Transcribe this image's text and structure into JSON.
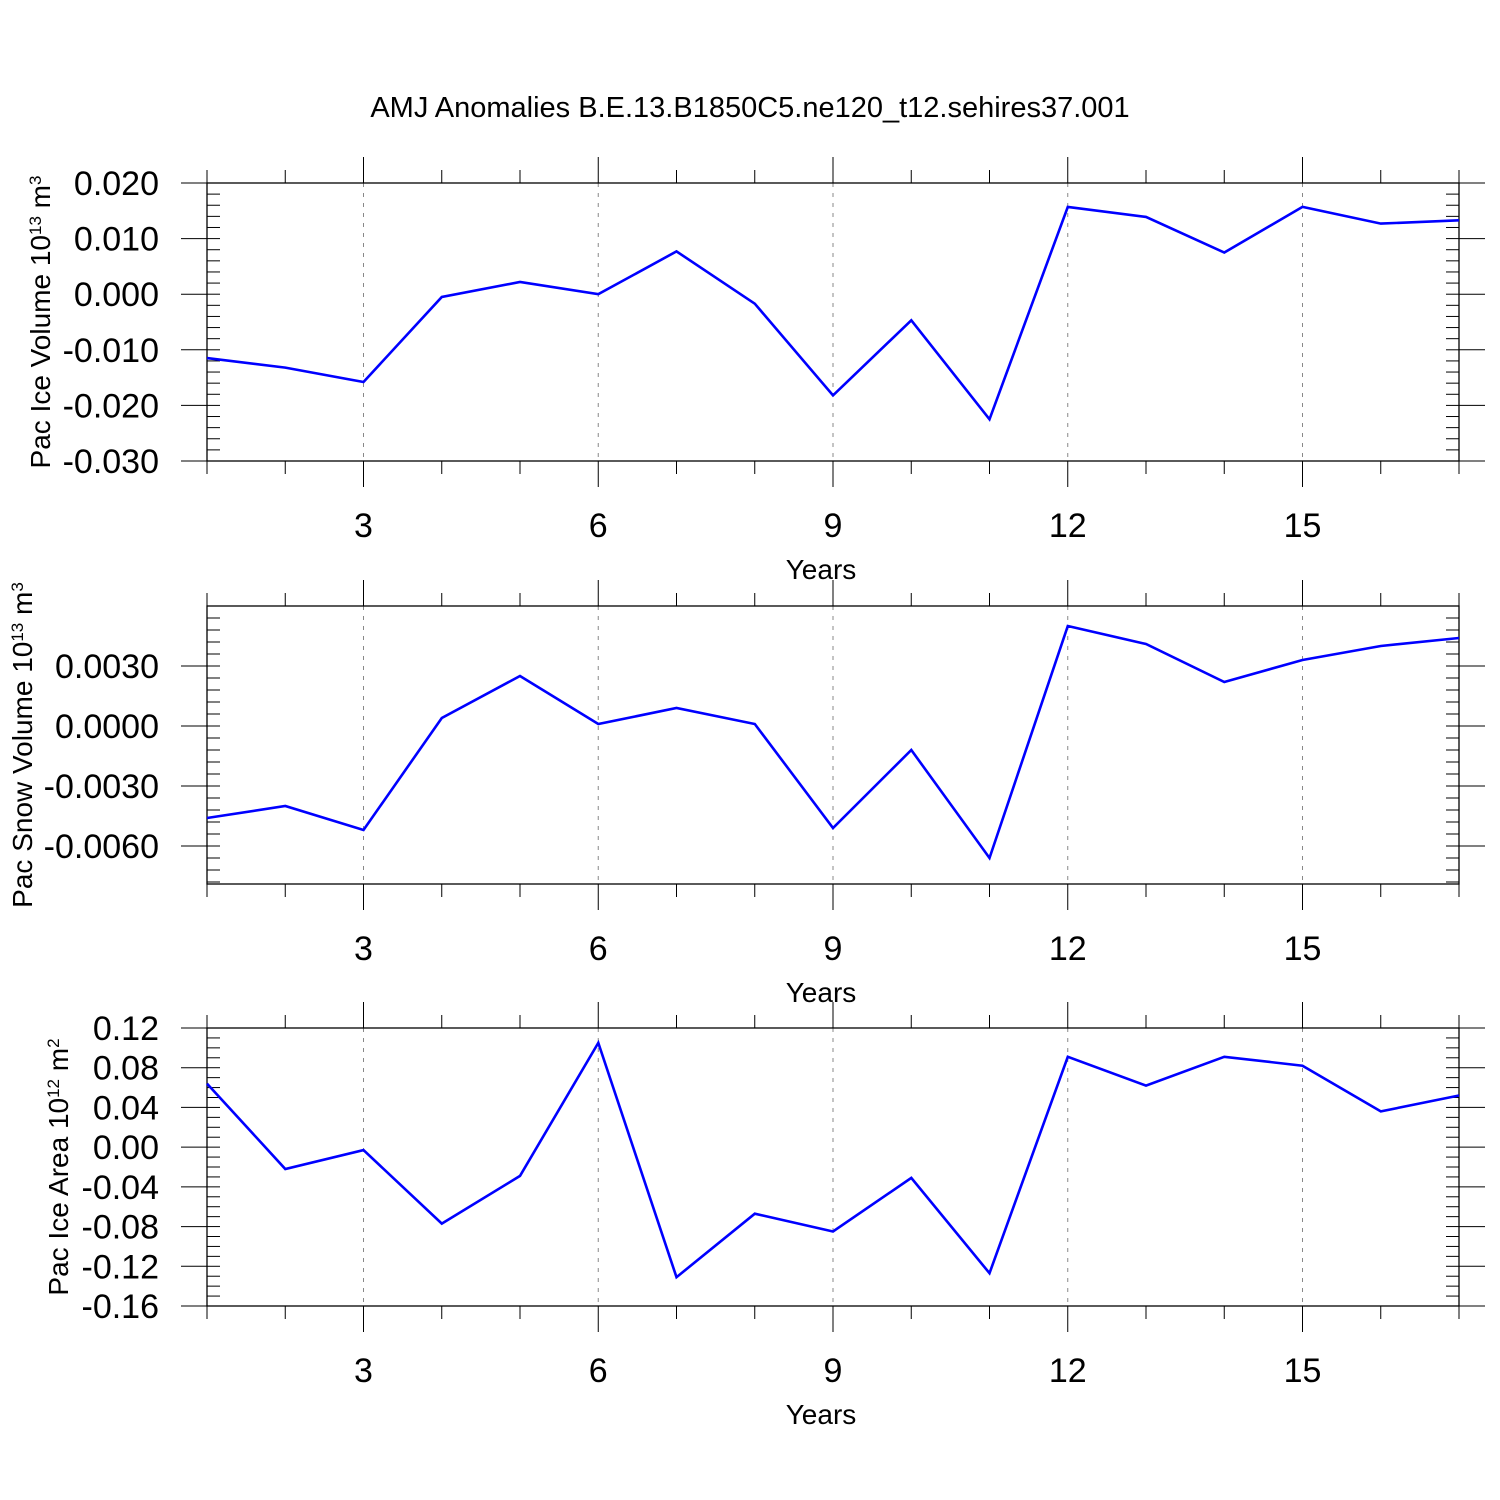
{
  "title": "AMJ Anomalies B.E.13.B1850C5.ne120_t12.sehires37.001",
  "colors": {
    "line": "#0000ff",
    "axis": "#000000",
    "grid": "#888888"
  },
  "chart_data": [
    {
      "type": "line",
      "xlabel": "Years",
      "ylabel": "Pac Ice Volume 10",
      "ylabel_sup": "13",
      "ylabel_unit": "m",
      "ylabel_unit_sup": "3",
      "xlim": [
        1,
        17
      ],
      "ylim": [
        -0.03,
        0.02
      ],
      "xticks": [
        "3",
        "6",
        "9",
        "12",
        "15"
      ],
      "yticks": [
        "0.020",
        "0.010",
        "0.000",
        "-0.010",
        "-0.020",
        "-0.030"
      ],
      "grid": "vertical dashed at major x ticks",
      "series": [
        {
          "x": [
            1,
            2,
            3,
            4,
            5,
            6,
            7,
            8,
            9,
            10,
            11,
            12,
            13,
            14,
            15,
            16,
            17
          ],
          "values": [
            -0.0115,
            -0.0132,
            -0.0158,
            -0.0005,
            0.0022,
            0.0,
            0.0077,
            -0.0017,
            -0.0182,
            -0.0047,
            -0.0225,
            0.0157,
            0.0139,
            0.0075,
            0.0157,
            0.0127,
            0.0133
          ]
        }
      ]
    },
    {
      "type": "line",
      "xlabel": "Years",
      "ylabel": "Pac Snow Volume 10",
      "ylabel_sup": "13",
      "ylabel_unit": "m",
      "ylabel_unit_sup": "3",
      "xlim": [
        1,
        17
      ],
      "ylim": [
        -0.0079,
        0.006
      ],
      "xticks": [
        "3",
        "6",
        "9",
        "12",
        "15"
      ],
      "yticks": [
        "0.0030",
        "0.0000",
        "-0.0030",
        "-0.0060"
      ],
      "grid": "vertical dashed at major x ticks",
      "series": [
        {
          "x": [
            1,
            2,
            3,
            4,
            5,
            6,
            7,
            8,
            9,
            10,
            11,
            12,
            13,
            14,
            15,
            16,
            17
          ],
          "values": [
            -0.0046,
            -0.004,
            -0.0052,
            0.0004,
            0.0025,
            0.0001,
            0.0009,
            0.0001,
            -0.0051,
            -0.0012,
            -0.0066,
            0.005,
            0.0041,
            0.0022,
            0.0033,
            0.004,
            0.0044
          ]
        }
      ]
    },
    {
      "type": "line",
      "xlabel": "Years",
      "ylabel": "Pac Ice Area 10",
      "ylabel_sup": "12",
      "ylabel_unit": "m",
      "ylabel_unit_sup": "2",
      "xlim": [
        1,
        17
      ],
      "ylim": [
        -0.16,
        0.12
      ],
      "xticks": [
        "3",
        "6",
        "9",
        "12",
        "15"
      ],
      "yticks": [
        "0.12",
        "0.08",
        "0.04",
        "0.00",
        "-0.04",
        "-0.08",
        "-0.12",
        "-0.16"
      ],
      "grid": "vertical dashed at major x ticks",
      "series": [
        {
          "x": [
            1,
            2,
            3,
            4,
            5,
            6,
            7,
            8,
            9,
            10,
            11,
            12,
            13,
            14,
            15,
            16,
            17
          ],
          "values": [
            0.064,
            -0.022,
            -0.003,
            -0.077,
            -0.029,
            0.105,
            -0.131,
            -0.067,
            -0.085,
            -0.031,
            -0.127,
            0.091,
            0.062,
            0.091,
            0.082,
            0.036,
            0.052
          ]
        }
      ]
    }
  ]
}
